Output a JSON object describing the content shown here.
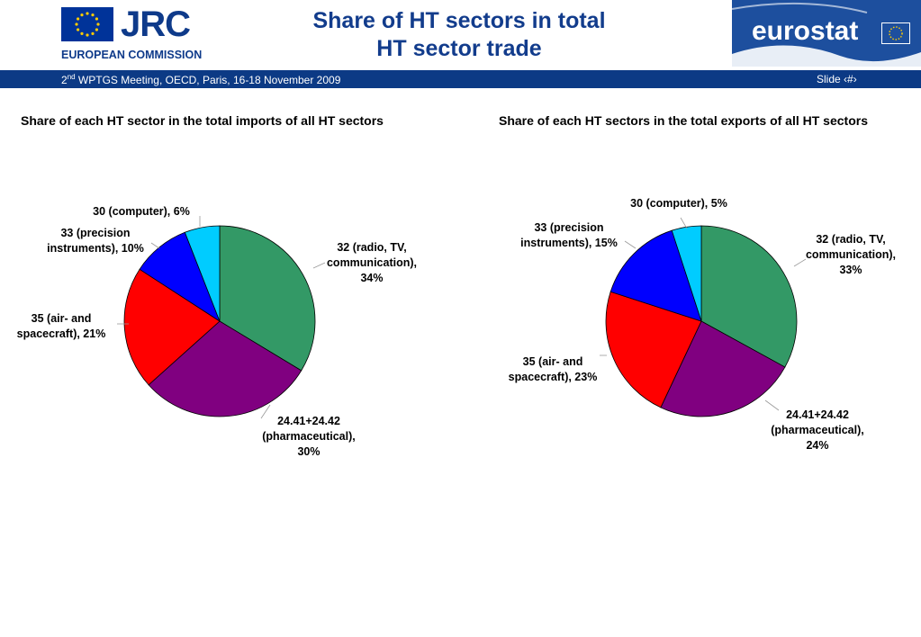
{
  "header": {
    "jrc_logo": {
      "acronym": "JRC",
      "org": "EUROPEAN COMMISSION"
    },
    "title_line1": "Share of HT sectors in total",
    "title_line2": "HT sector trade",
    "eurostat_logo": {
      "word": "eurostat"
    }
  },
  "footer_bar": {
    "meeting_ordinal": "2",
    "meeting_sup": "nd",
    "meeting_text": " WPTGS Meeting, OECD, Paris, 16-18 November 2009",
    "slide_label": "Slide ‹#›"
  },
  "colors": {
    "brand_blue": "#0c3a85",
    "title_blue": "#123c8c",
    "eurostat_blue": "#1d4f9e"
  },
  "chart_data": [
    {
      "type": "pie",
      "title": "Share of each HT sector in the total imports of all HT sectors",
      "slices": [
        {
          "label_lines": [
            "32 (radio, TV,",
            "communication),",
            "34%"
          ],
          "value": 34,
          "color": "#339966"
        },
        {
          "label_lines": [
            "24.41+24.42",
            "(pharmaceutical),",
            "30%"
          ],
          "value": 30,
          "color": "#800080"
        },
        {
          "label_lines": [
            "35 (air- and",
            "spacecraft), 21%"
          ],
          "value": 21,
          "color": "#ff0000"
        },
        {
          "label_lines": [
            "33 (precision",
            "instruments), 10%"
          ],
          "value": 10,
          "color": "#0000ff"
        },
        {
          "label_lines": [
            "30 (computer), 6%"
          ],
          "value": 6,
          "color": "#00ccff"
        }
      ]
    },
    {
      "type": "pie",
      "title": "Share of each HT sectors in the total exports of all HT sectors",
      "slices": [
        {
          "label_lines": [
            "32 (radio, TV,",
            "communication),",
            "33%"
          ],
          "value": 33,
          "color": "#339966"
        },
        {
          "label_lines": [
            "24.41+24.42",
            "(pharmaceutical),",
            "24%"
          ],
          "value": 24,
          "color": "#800080"
        },
        {
          "label_lines": [
            "35 (air- and",
            "spacecraft), 23%"
          ],
          "value": 23,
          "color": "#ff0000"
        },
        {
          "label_lines": [
            "33 (precision",
            "instruments), 15%"
          ],
          "value": 15,
          "color": "#0000ff"
        },
        {
          "label_lines": [
            "30 (computer), 5%"
          ],
          "value": 5,
          "color": "#00ccff"
        }
      ]
    }
  ]
}
